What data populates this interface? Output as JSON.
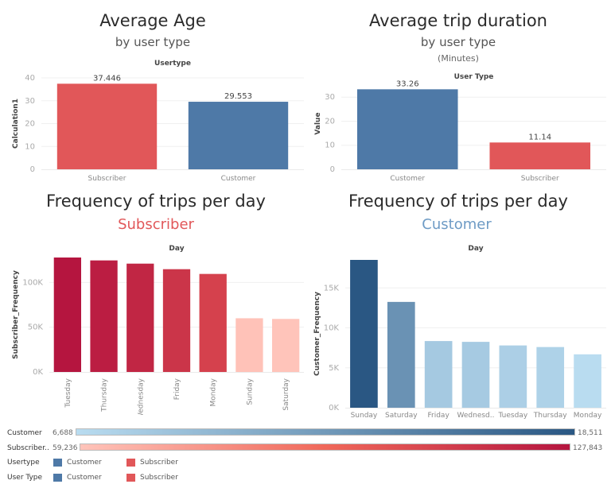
{
  "panels": {
    "avg_age": {
      "title": "Average Age",
      "subtitle": "by user type"
    },
    "avg_duration": {
      "title": "Average trip duration",
      "subtitle": "by user type",
      "subtitle2": "(Minutes)"
    },
    "freq_subscriber": {
      "title": "Frequency of trips per day",
      "subtitle": "Subscriber",
      "subtitle_color": "#e15759"
    },
    "freq_customer": {
      "title": "Frequency of trips per day",
      "subtitle": "Customer",
      "subtitle_color": "#6e9bc5"
    }
  },
  "chart_data": [
    {
      "id": "avg_age",
      "type": "bar",
      "column_header": "Usertype",
      "ylabel": "Calculation1",
      "xlabel": "",
      "categories": [
        "Subscriber",
        "Customer"
      ],
      "values": [
        37.446,
        29.553
      ],
      "value_labels": [
        "37.446",
        "29.553"
      ],
      "colors": [
        "#e15759",
        "#4e79a7"
      ],
      "ylim": [
        0,
        40
      ],
      "yticks": [
        0,
        10,
        20,
        30,
        40
      ],
      "ytick_labels": [
        "0",
        "10",
        "20",
        "30",
        "40"
      ],
      "grid": true
    },
    {
      "id": "avg_duration",
      "type": "bar",
      "column_header": "User Type",
      "ylabel": "Value",
      "xlabel": "",
      "categories": [
        "Customer",
        "Subscriber"
      ],
      "values": [
        33.26,
        11.14
      ],
      "value_labels": [
        "33.26",
        "11.14"
      ],
      "colors": [
        "#4e79a7",
        "#e15759"
      ],
      "ylim": [
        0,
        38
      ],
      "yticks": [
        0,
        10,
        20,
        30
      ],
      "ytick_labels": [
        "0",
        "10",
        "20",
        "30"
      ],
      "grid": true
    },
    {
      "id": "freq_subscriber",
      "type": "bar",
      "column_header": "Day",
      "ylabel": "Subscriber_Frequency",
      "xlabel": "",
      "categories": [
        "Tuesday",
        "Thursday",
        "Wednesday",
        "Friday",
        "Monday",
        "Sunday",
        "Saturday"
      ],
      "values": [
        127843,
        124600,
        121000,
        114800,
        109500,
        60000,
        59236
      ],
      "color_range": [
        59236,
        127843
      ],
      "ylim": [
        0,
        127843
      ],
      "yticks": [
        0,
        50000,
        100000
      ],
      "ytick_labels": [
        "0K",
        "50K",
        "100K"
      ],
      "rotated_labels": true,
      "grid": true
    },
    {
      "id": "freq_customer",
      "type": "bar",
      "column_header": "Day",
      "ylabel": "Customer_Frequency",
      "xlabel": "",
      "categories": [
        "Sunday",
        "Saturday",
        "Friday",
        "Wednesday",
        "Tuesday",
        "Thursday",
        "Monday"
      ],
      "category_labels": [
        "Sunday",
        "Saturday",
        "Friday",
        "Wednesd..",
        "Tuesday",
        "Thursday",
        "Monday"
      ],
      "values": [
        18511,
        13250,
        8350,
        8250,
        7800,
        7600,
        6688
      ],
      "color_range": [
        6688,
        18511
      ],
      "ylim": [
        0,
        18511
      ],
      "yticks": [
        0,
        5000,
        10000,
        15000
      ],
      "ytick_labels": [
        "0K",
        "5K",
        "10K",
        "15K"
      ],
      "rotated_labels": false,
      "grid": true
    }
  ],
  "color_legends": [
    {
      "label": "Customer",
      "min_label": "6,688",
      "max_label": "18,511",
      "from": "#b9dcf0",
      "to": "#2a5783"
    },
    {
      "label": "Subscriber..",
      "min_label": "59,236",
      "max_label": "127,843",
      "from": "#ffc4ba",
      "mid": "#f0685a",
      "to": "#b5153f"
    }
  ],
  "legends": [
    {
      "label": "Usertype",
      "items": [
        {
          "name": "Customer",
          "color": "#4e79a7"
        },
        {
          "name": "Subscriber",
          "color": "#e15759"
        }
      ]
    },
    {
      "label": "User Type",
      "items": [
        {
          "name": "Customer",
          "color": "#4e79a7"
        },
        {
          "name": "Subscriber",
          "color": "#e15759"
        }
      ]
    }
  ]
}
